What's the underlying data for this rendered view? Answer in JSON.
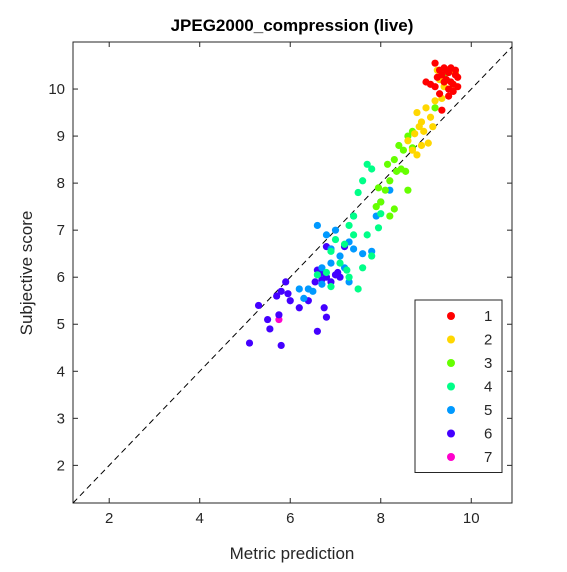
{
  "chart_data": {
    "type": "scatter",
    "title": "JPEG2000_compression (live)",
    "xlabel": "Metric prediction",
    "ylabel": "Subjective score",
    "xlim": [
      1.2,
      10.9
    ],
    "ylim": [
      1.2,
      11.0
    ],
    "x_ticks": [
      2,
      4,
      6,
      8,
      10
    ],
    "y_ticks": [
      2,
      3,
      4,
      5,
      6,
      7,
      8,
      9,
      10
    ],
    "grid": false,
    "box": true,
    "reference_line": {
      "style": "dashed",
      "from": [
        1.2,
        1.2
      ],
      "to": [
        10.9,
        10.9
      ]
    },
    "legend": {
      "placement": "bottom-right"
    },
    "series": [
      {
        "name": "1",
        "color": "#ff0000",
        "points": [
          [
            9.2,
            10.55
          ],
          [
            9.3,
            10.4
          ],
          [
            9.35,
            10.3
          ],
          [
            9.4,
            10.45
          ],
          [
            9.45,
            10.2
          ],
          [
            9.5,
            10.35
          ],
          [
            9.55,
            10.45
          ],
          [
            9.6,
            10.1
          ],
          [
            9.65,
            10.3
          ],
          [
            9.7,
            10.05
          ],
          [
            9.5,
            10.0
          ],
          [
            9.4,
            10.15
          ],
          [
            9.3,
            9.9
          ],
          [
            9.2,
            10.05
          ],
          [
            9.1,
            10.1
          ],
          [
            9.0,
            10.15
          ],
          [
            9.6,
            9.95
          ],
          [
            9.7,
            10.25
          ],
          [
            9.35,
            9.55
          ],
          [
            9.55,
            10.15
          ],
          [
            9.25,
            10.25
          ],
          [
            9.45,
            10.4
          ],
          [
            9.65,
            10.4
          ],
          [
            9.5,
            9.85
          ]
        ]
      },
      {
        "name": "2",
        "color": "#ffd700",
        "points": [
          [
            8.8,
            9.5
          ],
          [
            8.9,
            9.3
          ],
          [
            9.0,
            9.6
          ],
          [
            9.1,
            9.4
          ],
          [
            8.85,
            9.2
          ],
          [
            9.2,
            9.75
          ],
          [
            9.3,
            10.2
          ],
          [
            9.4,
            10.05
          ],
          [
            9.65,
            10.35
          ],
          [
            9.25,
            10.4
          ],
          [
            8.95,
            9.1
          ],
          [
            8.7,
            8.7
          ],
          [
            8.6,
            8.9
          ],
          [
            8.8,
            8.6
          ],
          [
            9.05,
            8.85
          ],
          [
            8.75,
            9.05
          ],
          [
            9.15,
            9.2
          ],
          [
            8.9,
            8.8
          ],
          [
            9.6,
            10.1
          ],
          [
            9.35,
            9.8
          ]
        ]
      },
      {
        "name": "3",
        "color": "#66ff00",
        "points": [
          [
            8.4,
            8.8
          ],
          [
            8.5,
            8.7
          ],
          [
            8.6,
            9.0
          ],
          [
            8.7,
            8.75
          ],
          [
            8.3,
            8.5
          ],
          [
            8.45,
            8.3
          ],
          [
            8.2,
            8.05
          ],
          [
            8.1,
            7.85
          ],
          [
            8.0,
            7.6
          ],
          [
            8.3,
            7.45
          ],
          [
            7.9,
            7.5
          ],
          [
            8.2,
            7.3
          ],
          [
            8.35,
            8.25
          ],
          [
            8.6,
            7.85
          ],
          [
            9.4,
            10.3
          ],
          [
            8.55,
            8.25
          ],
          [
            8.15,
            8.4
          ],
          [
            7.95,
            7.9
          ],
          [
            9.2,
            9.6
          ],
          [
            8.7,
            9.1
          ]
        ]
      },
      {
        "name": "4",
        "color": "#00ff88",
        "points": [
          [
            7.7,
            8.4
          ],
          [
            7.8,
            8.3
          ],
          [
            7.6,
            8.05
          ],
          [
            7.5,
            7.8
          ],
          [
            7.4,
            7.3
          ],
          [
            7.3,
            7.1
          ],
          [
            7.2,
            6.7
          ],
          [
            7.0,
            6.8
          ],
          [
            6.9,
            6.55
          ],
          [
            7.1,
            6.3
          ],
          [
            7.6,
            6.2
          ],
          [
            7.7,
            6.9
          ],
          [
            6.8,
            6.1
          ],
          [
            6.9,
            5.8
          ],
          [
            7.5,
            5.75
          ],
          [
            7.3,
            6.0
          ],
          [
            7.8,
            6.45
          ],
          [
            7.4,
            6.9
          ],
          [
            8.0,
            7.35
          ],
          [
            7.95,
            7.05
          ],
          [
            6.6,
            6.05
          ],
          [
            7.25,
            6.15
          ]
        ]
      },
      {
        "name": "5",
        "color": "#0099ff",
        "points": [
          [
            6.6,
            7.1
          ],
          [
            6.8,
            6.9
          ],
          [
            7.0,
            7.0
          ],
          [
            6.9,
            6.6
          ],
          [
            7.1,
            6.45
          ],
          [
            7.2,
            6.2
          ],
          [
            7.3,
            5.9
          ],
          [
            6.7,
            6.2
          ],
          [
            6.4,
            5.75
          ],
          [
            6.2,
            5.75
          ],
          [
            6.5,
            5.7
          ],
          [
            6.7,
            5.85
          ],
          [
            7.4,
            6.6
          ],
          [
            7.6,
            6.5
          ],
          [
            7.8,
            6.55
          ],
          [
            7.4,
            7.3
          ],
          [
            8.0,
            7.6
          ],
          [
            8.2,
            7.85
          ],
          [
            7.9,
            7.3
          ],
          [
            6.3,
            5.55
          ],
          [
            6.9,
            6.3
          ],
          [
            7.3,
            6.75
          ]
        ]
      },
      {
        "name": "6",
        "color": "#4400ff",
        "points": [
          [
            5.1,
            4.6
          ],
          [
            5.3,
            5.4
          ],
          [
            5.5,
            5.1
          ],
          [
            5.8,
            5.7
          ],
          [
            5.9,
            5.9
          ],
          [
            5.8,
            4.55
          ],
          [
            6.0,
            5.5
          ],
          [
            6.6,
            4.85
          ],
          [
            6.7,
            6.1
          ],
          [
            6.8,
            6.0
          ],
          [
            6.9,
            5.9
          ],
          [
            7.0,
            6.05
          ],
          [
            7.1,
            6.0
          ],
          [
            6.8,
            6.65
          ],
          [
            6.9,
            6.6
          ],
          [
            7.2,
            6.65
          ],
          [
            6.2,
            5.35
          ],
          [
            6.4,
            5.5
          ],
          [
            6.6,
            6.15
          ],
          [
            5.7,
            5.6
          ],
          [
            5.55,
            4.9
          ],
          [
            6.75,
            5.35
          ],
          [
            6.8,
            5.15
          ],
          [
            5.75,
            5.2
          ],
          [
            6.7,
            5.95
          ],
          [
            7.05,
            6.1
          ],
          [
            5.95,
            5.65
          ],
          [
            6.55,
            5.9
          ]
        ]
      },
      {
        "name": "7",
        "color": "#ff00cc",
        "points": [
          [
            5.75,
            5.1
          ]
        ]
      }
    ]
  }
}
